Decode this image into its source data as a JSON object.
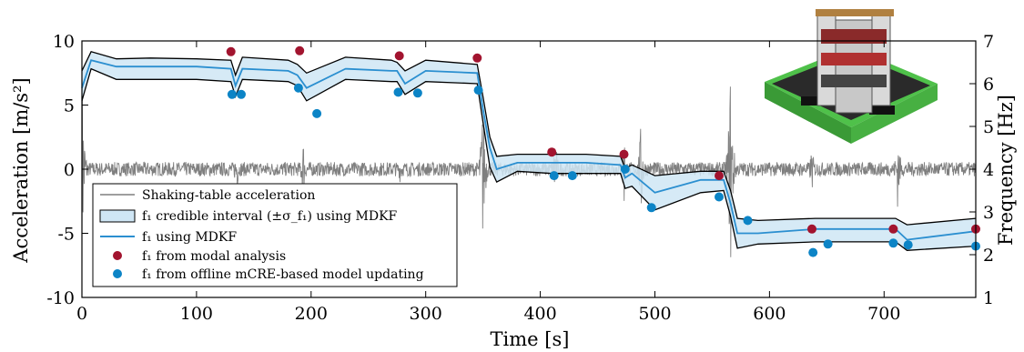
{
  "chart_data": {
    "type": "line",
    "xlabel": "Time [s]",
    "ylabel_left": "Acceleration [m/s²]",
    "ylabel_right": "Frequency [Hz]",
    "xlim": [
      0,
      780
    ],
    "ylim_left": [
      -10,
      10
    ],
    "ylim_right": [
      1,
      7
    ],
    "xticks": [
      0,
      100,
      200,
      300,
      400,
      500,
      600,
      700
    ],
    "yticks_left": [
      10,
      5,
      0,
      -5,
      -10
    ],
    "yticks_right": [
      7,
      6,
      5,
      4,
      3,
      2,
      1
    ],
    "grid": false,
    "legend_position": "bottom-left",
    "colors": {
      "acceleration": "#7f7f7f",
      "band_fill": "#cfe6f5",
      "band_edge": "#000000",
      "mdkf_line": "#2b8fd0",
      "modal": "#a2142f",
      "mcre": "#0c84c6"
    },
    "legend": [
      {
        "key": "acceleration",
        "label": "Shaking-table acceleration"
      },
      {
        "key": "band",
        "label": "f₁ credible interval (±σ_f₁) using MDKF"
      },
      {
        "key": "mdkf",
        "label": "f₁ using MDKF"
      },
      {
        "key": "modal",
        "label": "f₁ from modal analysis"
      },
      {
        "key": "mcre",
        "label": "f₁ from offline mCRE-based model updating"
      }
    ],
    "series": [
      {
        "name": "f₁ using MDKF",
        "axis": "right",
        "x": [
          0,
          8,
          30,
          60,
          100,
          130,
          134,
          140,
          180,
          188,
          196,
          230,
          270,
          275,
          282,
          300,
          345,
          350,
          356,
          362,
          380,
          410,
          440,
          470,
          474,
          480,
          500,
          540,
          560,
          566,
          572,
          590,
          640,
          700,
          710,
          720,
          780
        ],
        "y": [
          5.9,
          6.55,
          6.4,
          6.4,
          6.4,
          6.35,
          5.95,
          6.35,
          6.3,
          6.2,
          5.9,
          6.35,
          6.3,
          6.3,
          6.0,
          6.3,
          6.25,
          5.4,
          4.5,
          4.0,
          4.15,
          4.15,
          4.15,
          4.1,
          3.8,
          3.9,
          3.45,
          3.75,
          3.75,
          3.2,
          2.5,
          2.5,
          2.6,
          2.6,
          2.6,
          2.35,
          2.55
        ]
      },
      {
        "name": "band upper",
        "axis": "right",
        "x": [
          0,
          8,
          30,
          60,
          100,
          130,
          134,
          140,
          180,
          188,
          196,
          230,
          270,
          275,
          282,
          300,
          345,
          350,
          356,
          362,
          380,
          410,
          440,
          470,
          474,
          480,
          500,
          540,
          560,
          566,
          572,
          590,
          640,
          700,
          710,
          720,
          780
        ],
        "y": [
          6.3,
          6.75,
          6.58,
          6.6,
          6.58,
          6.55,
          6.2,
          6.62,
          6.55,
          6.45,
          6.25,
          6.62,
          6.55,
          6.5,
          6.3,
          6.55,
          6.45,
          5.7,
          4.75,
          4.3,
          4.35,
          4.35,
          4.35,
          4.3,
          4.02,
          4.1,
          3.85,
          3.95,
          3.95,
          3.5,
          2.85,
          2.8,
          2.85,
          2.85,
          2.85,
          2.7,
          2.85
        ]
      },
      {
        "name": "band lower",
        "axis": "right",
        "x": [
          0,
          8,
          30,
          60,
          100,
          130,
          134,
          140,
          180,
          188,
          196,
          230,
          270,
          275,
          282,
          300,
          345,
          350,
          356,
          362,
          380,
          410,
          440,
          470,
          474,
          480,
          500,
          540,
          560,
          566,
          572,
          590,
          640,
          700,
          710,
          720,
          780
        ],
        "y": [
          5.6,
          6.35,
          6.1,
          6.1,
          6.1,
          6.05,
          5.7,
          6.1,
          6.05,
          5.95,
          5.6,
          6.1,
          6.05,
          6.05,
          5.75,
          6.05,
          6.0,
          5.1,
          4.05,
          3.7,
          3.95,
          3.9,
          3.9,
          3.9,
          3.55,
          3.6,
          3.05,
          3.45,
          3.5,
          2.9,
          2.15,
          2.25,
          2.3,
          2.3,
          2.3,
          2.1,
          2.2
        ]
      },
      {
        "name": "f₁ from modal analysis",
        "axis": "right",
        "type": "scatter",
        "x": [
          130,
          190,
          277,
          345,
          410,
          473,
          556,
          637,
          708,
          780
        ],
        "y": [
          6.75,
          6.77,
          6.65,
          6.6,
          4.4,
          4.35,
          3.85,
          2.6,
          2.6,
          2.6
        ]
      },
      {
        "name": "f₁ from offline mCRE-based model updating",
        "axis": "right",
        "type": "scatter",
        "x": [
          131,
          139,
          189,
          205,
          276,
          293,
          346,
          412,
          428,
          474,
          497,
          556,
          581,
          638,
          651,
          708,
          721,
          780
        ],
        "y": [
          5.75,
          5.75,
          5.9,
          5.3,
          5.8,
          5.78,
          5.85,
          3.85,
          3.85,
          4.0,
          3.1,
          3.35,
          2.8,
          2.05,
          2.25,
          2.27,
          2.23,
          2.2
        ]
      },
      {
        "name": "Shaking-table acceleration",
        "axis": "left",
        "bursts": [
          {
            "t": 0,
            "amp": 10
          },
          {
            "t": 135,
            "amp": 2.0
          },
          {
            "t": 193,
            "amp": 2.8
          },
          {
            "t": 278,
            "amp": 1.3
          },
          {
            "t": 350,
            "amp": 6.8
          },
          {
            "t": 413,
            "amp": 3.0
          },
          {
            "t": 473,
            "amp": 3.3
          },
          {
            "t": 488,
            "amp": 4.3
          },
          {
            "t": 566,
            "amp": 9.0
          },
          {
            "t": 637,
            "amp": 2.0
          },
          {
            "t": 712,
            "amp": 3.5
          }
        ],
        "noise_amp": 0.55
      }
    ]
  }
}
